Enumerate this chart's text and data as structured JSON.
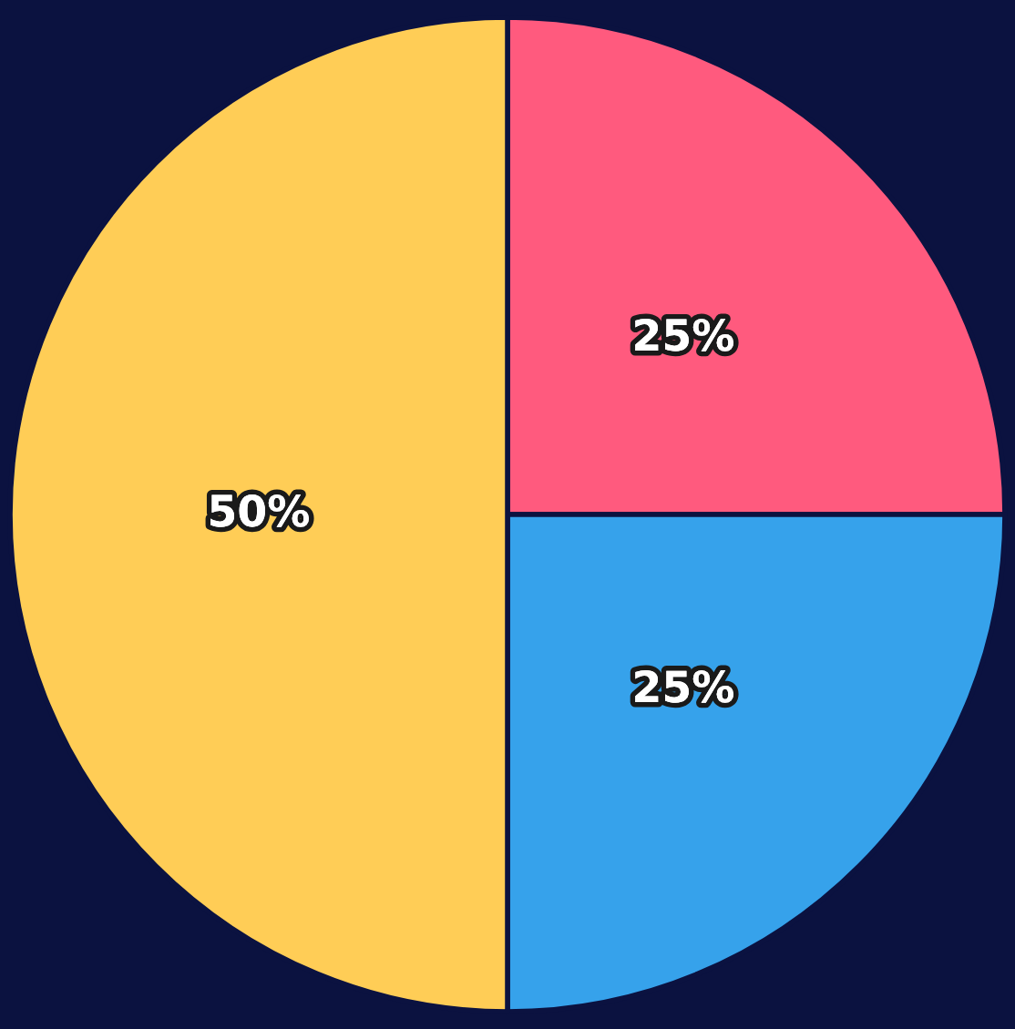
{
  "chart_data": {
    "type": "pie",
    "categories": [
      null,
      null,
      null
    ],
    "values": [
      25,
      25,
      50
    ],
    "colors": [
      "#ff5a7e",
      "#36a2eb",
      "#ffcd56"
    ],
    "value_labels": [
      "25%",
      "25%",
      "50%"
    ]
  }
}
